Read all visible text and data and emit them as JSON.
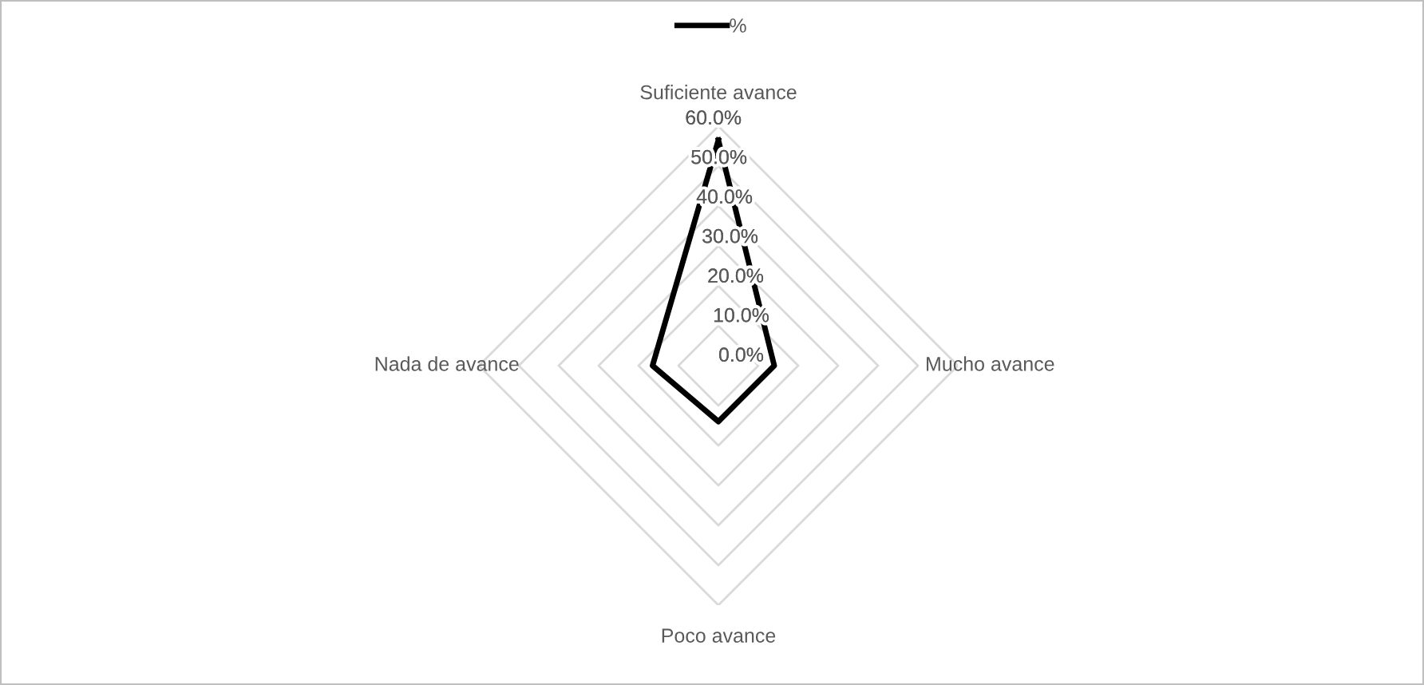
{
  "chart_data": {
    "type": "radar",
    "categories": [
      "Suficiente avance",
      "Mucho avance",
      "Poco avance",
      "Nada de avance"
    ],
    "series": [
      {
        "name": "%",
        "color": "#000000",
        "values": [
          56.5,
          14,
          14,
          16.5
        ]
      }
    ],
    "ylim": [
      0,
      60
    ],
    "yticks": [
      {
        "value": 0,
        "label": "0.0%"
      },
      {
        "value": 10,
        "label": "10.0%"
      },
      {
        "value": 20,
        "label": "20.0%"
      },
      {
        "value": 30,
        "label": "30.0%"
      },
      {
        "value": 40,
        "label": "40.0%"
      },
      {
        "value": 50,
        "label": "50.0%"
      },
      {
        "value": 60,
        "label": "60.0%"
      }
    ],
    "grid": true,
    "legend": "top",
    "marker": "none",
    "line_style": "solid"
  }
}
